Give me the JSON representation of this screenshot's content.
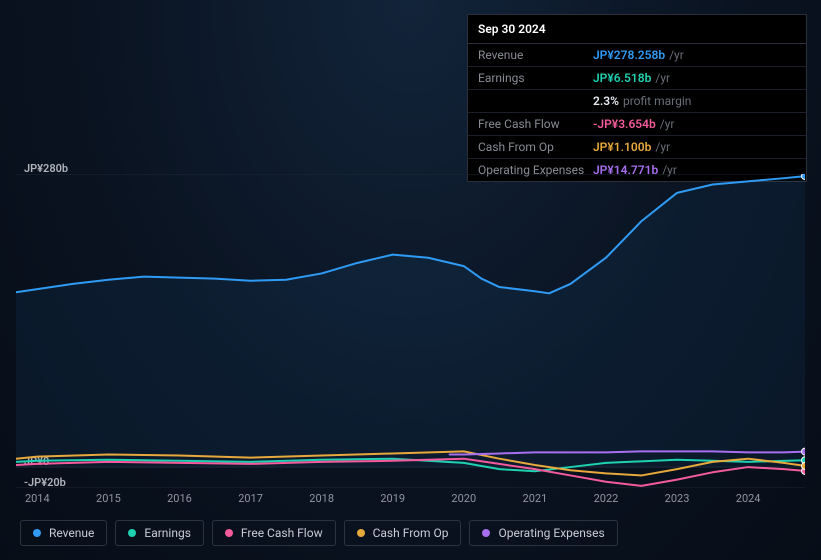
{
  "chart": {
    "type": "line",
    "background_gradient": [
      "#12243a",
      "#0a1321",
      "#070d17"
    ],
    "x_start": 2013.7,
    "x_end": 2024.8,
    "years": [
      2014,
      2015,
      2016,
      2017,
      2018,
      2019,
      2020,
      2021,
      2022,
      2023,
      2024
    ],
    "y_min": -20,
    "y_max": 280,
    "y_ticks": [
      {
        "v": 280,
        "label": "JP¥280b"
      },
      {
        "v": 0,
        "label": "JP¥0"
      },
      {
        "v": -20,
        "label": "-JP¥20b"
      }
    ],
    "grid_color": "#1c2533",
    "series": [
      {
        "key": "revenue",
        "label": "Revenue",
        "color": "#2f9bf4",
        "points": [
          [
            2013.7,
            167
          ],
          [
            2014,
            170
          ],
          [
            2014.5,
            175
          ],
          [
            2015,
            179
          ],
          [
            2015.5,
            182
          ],
          [
            2016,
            181
          ],
          [
            2016.5,
            180
          ],
          [
            2017,
            178
          ],
          [
            2017.5,
            179
          ],
          [
            2018,
            185
          ],
          [
            2018.5,
            195
          ],
          [
            2019,
            203
          ],
          [
            2019.5,
            200
          ],
          [
            2020,
            192
          ],
          [
            2020.25,
            180
          ],
          [
            2020.5,
            172
          ],
          [
            2021,
            168
          ],
          [
            2021.2,
            166
          ],
          [
            2021.5,
            175
          ],
          [
            2022,
            200
          ],
          [
            2022.5,
            235
          ],
          [
            2023,
            262
          ],
          [
            2023.5,
            270
          ],
          [
            2024,
            273
          ],
          [
            2024.5,
            276
          ],
          [
            2024.8,
            278
          ]
        ],
        "area_fill": "rgba(47,155,244,0.07)"
      },
      {
        "key": "earnings",
        "label": "Earnings",
        "color": "#1fd1b0",
        "points": [
          [
            2013.7,
            5
          ],
          [
            2014,
            6
          ],
          [
            2015,
            7
          ],
          [
            2016,
            6
          ],
          [
            2017,
            5
          ],
          [
            2018,
            7
          ],
          [
            2019,
            8
          ],
          [
            2020,
            4
          ],
          [
            2020.5,
            -2
          ],
          [
            2021,
            -4
          ],
          [
            2021.5,
            0
          ],
          [
            2022,
            4
          ],
          [
            2023,
            7
          ],
          [
            2023.5,
            6
          ],
          [
            2024,
            5
          ],
          [
            2024.8,
            6.5
          ]
        ]
      },
      {
        "key": "fcf",
        "label": "Free Cash Flow",
        "color": "#f45b9c",
        "points": [
          [
            2013.7,
            2
          ],
          [
            2014,
            3
          ],
          [
            2015,
            5
          ],
          [
            2016,
            4
          ],
          [
            2017,
            3
          ],
          [
            2018,
            5
          ],
          [
            2019,
            6
          ],
          [
            2020,
            8
          ],
          [
            2020.5,
            3
          ],
          [
            2021,
            -2
          ],
          [
            2021.5,
            -8
          ],
          [
            2022,
            -14
          ],
          [
            2022.5,
            -18
          ],
          [
            2023,
            -12
          ],
          [
            2023.5,
            -5
          ],
          [
            2024,
            0
          ],
          [
            2024.5,
            -2
          ],
          [
            2024.8,
            -3.7
          ]
        ]
      },
      {
        "key": "cfo",
        "label": "Cash From Op",
        "color": "#e7a83c",
        "points": [
          [
            2013.7,
            8
          ],
          [
            2014,
            10
          ],
          [
            2015,
            12
          ],
          [
            2016,
            11
          ],
          [
            2017,
            9
          ],
          [
            2018,
            11
          ],
          [
            2019,
            13
          ],
          [
            2020,
            15
          ],
          [
            2020.5,
            8
          ],
          [
            2021,
            2
          ],
          [
            2021.5,
            -3
          ],
          [
            2022,
            -6
          ],
          [
            2022.5,
            -8
          ],
          [
            2023,
            -2
          ],
          [
            2023.5,
            5
          ],
          [
            2024,
            8
          ],
          [
            2024.5,
            4
          ],
          [
            2024.8,
            1.1
          ]
        ]
      },
      {
        "key": "opex",
        "label": "Operating Expenses",
        "color": "#a76ff0",
        "points": [
          [
            2019.8,
            12
          ],
          [
            2020,
            12
          ],
          [
            2020.5,
            13
          ],
          [
            2021,
            14
          ],
          [
            2021.5,
            14
          ],
          [
            2022,
            14
          ],
          [
            2022.5,
            15
          ],
          [
            2023,
            15
          ],
          [
            2023.5,
            15
          ],
          [
            2024,
            14
          ],
          [
            2024.5,
            14
          ],
          [
            2024.8,
            14.8
          ]
        ]
      }
    ]
  },
  "tooltip": {
    "title": "Sep 30 2024",
    "rows": [
      {
        "label": "Revenue",
        "value": "JP¥278.258b",
        "unit": "/yr",
        "color": "#2f9bf4"
      },
      {
        "label": "Earnings",
        "value": "JP¥6.518b",
        "unit": "/yr",
        "color": "#1fd1b0"
      },
      {
        "label": "",
        "value": "2.3%",
        "unit": "profit margin",
        "color": "#e8ebf2"
      },
      {
        "label": "Free Cash Flow",
        "value": "-JP¥3.654b",
        "unit": "/yr",
        "color": "#f45b9c"
      },
      {
        "label": "Cash From Op",
        "value": "JP¥1.100b",
        "unit": "/yr",
        "color": "#e7a83c"
      },
      {
        "label": "Operating Expenses",
        "value": "JP¥14.771b",
        "unit": "/yr",
        "color": "#a76ff0"
      }
    ]
  },
  "legend": [
    {
      "label": "Revenue",
      "color": "#2f9bf4"
    },
    {
      "label": "Earnings",
      "color": "#1fd1b0"
    },
    {
      "label": "Free Cash Flow",
      "color": "#f45b9c"
    },
    {
      "label": "Cash From Op",
      "color": "#e7a83c"
    },
    {
      "label": "Operating Expenses",
      "color": "#a76ff0"
    }
  ]
}
